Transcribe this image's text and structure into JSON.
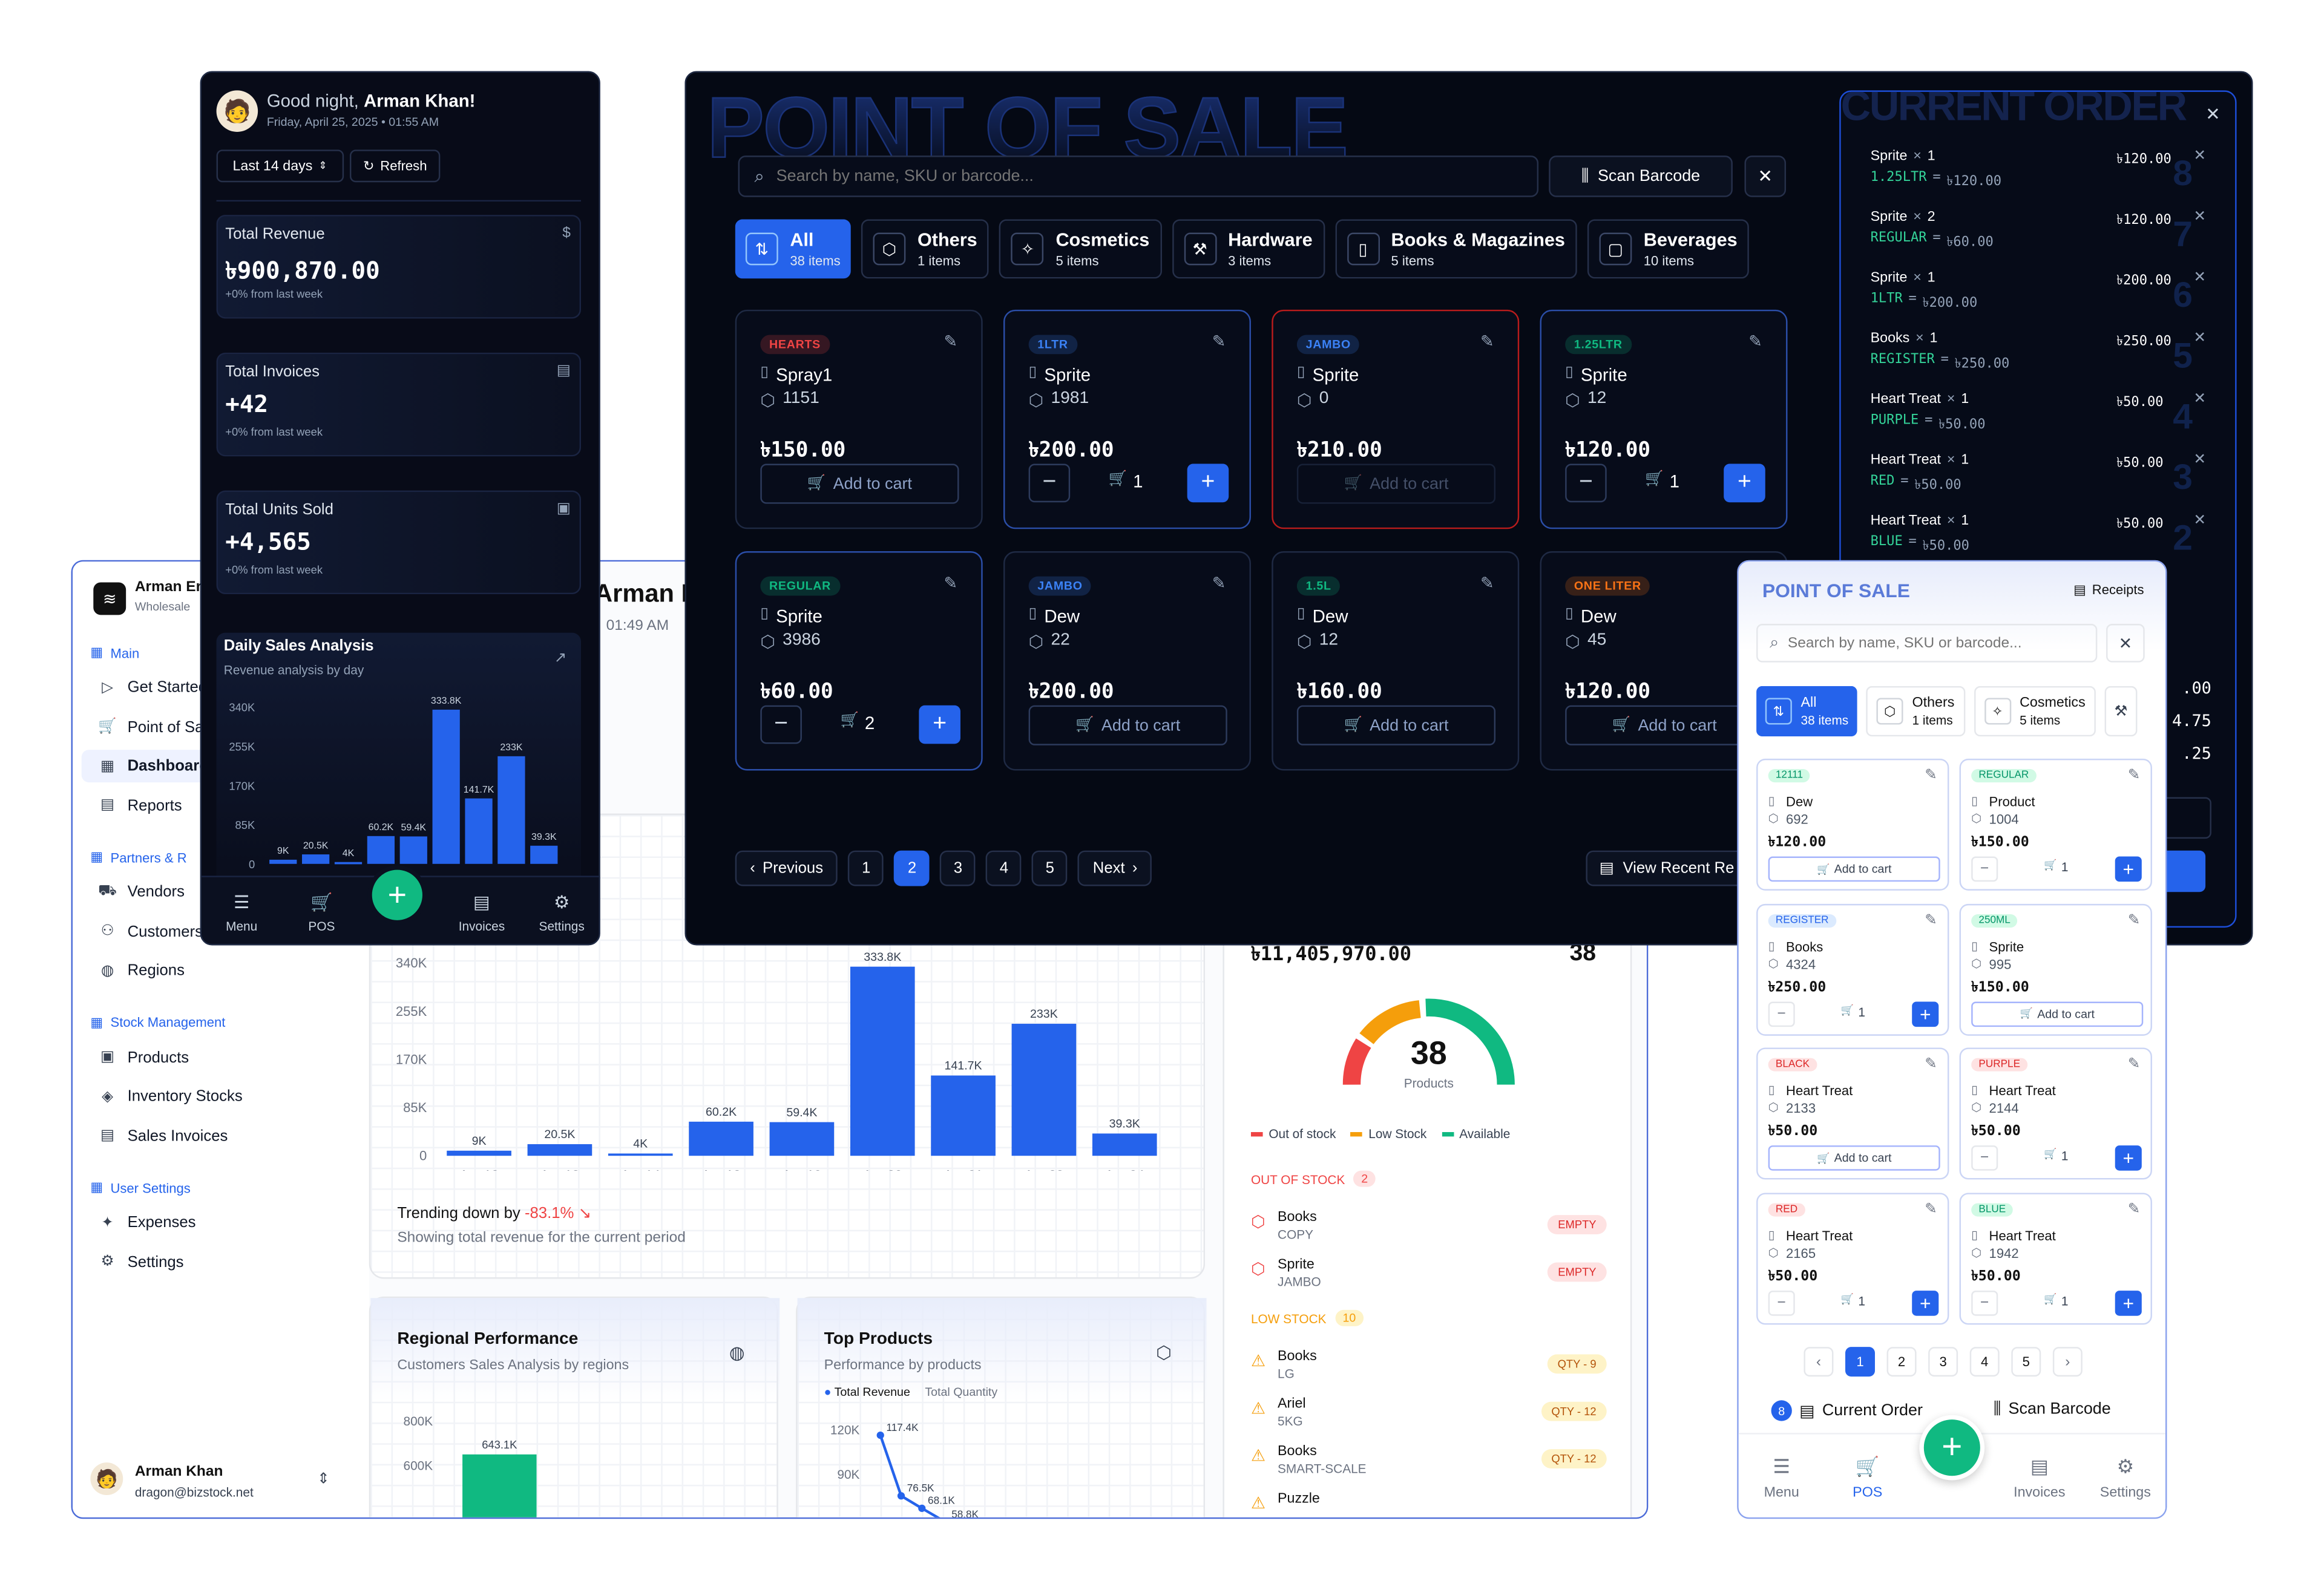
{
  "dashboard": {
    "company_name": "Arman Er",
    "company_sub": "Wholesale",
    "nav": [
      {
        "section": "Main",
        "items": [
          {
            "label": "Get Started",
            "icon": "play-icon"
          },
          {
            "label": "Point of Sale",
            "icon": "cart-icon"
          },
          {
            "label": "Dashboard",
            "icon": "grid-icon",
            "active": true
          },
          {
            "label": "Reports",
            "icon": "file-icon"
          }
        ]
      },
      {
        "section": "Partners & R",
        "items": [
          {
            "label": "Vendors",
            "icon": "truck-icon"
          },
          {
            "label": "Customers",
            "icon": "users-icon"
          },
          {
            "label": "Regions",
            "icon": "globe-icon"
          }
        ]
      },
      {
        "section": "Stock Management",
        "items": [
          {
            "label": "Products",
            "icon": "box-icon"
          },
          {
            "label": "Inventory Stocks",
            "icon": "layers-icon"
          },
          {
            "label": "Sales Invoices",
            "icon": "invoice-icon"
          }
        ]
      },
      {
        "section": "User Settings",
        "items": [
          {
            "label": "Expenses",
            "icon": "money-icon"
          },
          {
            "label": "Settings",
            "icon": "gear-icon"
          }
        ]
      }
    ],
    "user_name": "Arman Khan",
    "user_email": "dragon@bizstock.net",
    "header_name": "Arman K",
    "header_time": "01:49 AM",
    "sales_chart_footer": {
      "trend_text": "Trending down by",
      "trend_value": "-83.1%",
      "sub": "Showing total revenue for the current period"
    },
    "inventory": {
      "total_value": "৳11,405,970.00",
      "total_products": "38",
      "gauge_value": "38",
      "gauge_label": "Products",
      "legend": [
        {
          "label": "Out of stock",
          "color": "#ef4444"
        },
        {
          "label": "Low Stock",
          "color": "#f59e0b"
        },
        {
          "label": "Available",
          "color": "#10b981"
        }
      ],
      "out_title": "OUT OF STOCK",
      "out_count": "2",
      "out_items": [
        {
          "name": "Books",
          "sub": "COPY",
          "tag": "EMPTY"
        },
        {
          "name": "Sprite",
          "sub": "JAMBO",
          "tag": "EMPTY"
        }
      ],
      "low_title": "LOW STOCK",
      "low_count": "10",
      "low_items": [
        {
          "name": "Books",
          "sub": "LG",
          "tag": "QTY - 9"
        },
        {
          "name": "Ariel",
          "sub": "5KG",
          "tag": "QTY - 12"
        },
        {
          "name": "Books",
          "sub": "SMART-SCALE",
          "tag": "QTY - 12"
        },
        {
          "name": "Puzzle",
          "sub": "",
          "tag": ""
        }
      ]
    },
    "regional": {
      "title": "Regional Performance",
      "sub": "Customers Sales Analysis by regions"
    },
    "top_products": {
      "title": "Top Products",
      "sub": "Performance by products",
      "legend_a": "Total Revenue",
      "legend_b": "Total Quantity"
    }
  },
  "phone": {
    "greeting": "Good night,",
    "user": "Arman Khan!",
    "date": "Friday, April 25, 2025 • 01:55 AM",
    "range": "Last 14 days",
    "refresh": "Refresh",
    "kpis": [
      {
        "title": "Total Revenue",
        "value": "৳900,870.00",
        "sub": "+0% from last week",
        "icon": "dollar-icon"
      },
      {
        "title": "Total Invoices",
        "value": "+42",
        "sub": "+0% from last week",
        "icon": "invoice-icon"
      },
      {
        "title": "Total Units Sold",
        "value": "+4,565",
        "sub": "+0% from last week",
        "icon": "box-icon"
      }
    ],
    "chart_title": "Daily Sales Analysis",
    "chart_sub": "Revenue analysis by day",
    "nav": [
      "Menu",
      "POS",
      "",
      "Invoices",
      "Settings"
    ]
  },
  "pos": {
    "title_bg": "POINT OF SALE",
    "search_placeholder": "Search by name, SKU or barcode...",
    "scan": "Scan Barcode",
    "categories": [
      {
        "name": "All",
        "count": "38 items",
        "active": true
      },
      {
        "name": "Others",
        "count": "1 items"
      },
      {
        "name": "Cosmetics",
        "count": "5 items"
      },
      {
        "name": "Hardware",
        "count": "3 items"
      },
      {
        "name": "Books & Magazines",
        "count": "5 items"
      },
      {
        "name": "Beverages",
        "count": "10 items"
      }
    ],
    "products": [
      {
        "badge": "HEARTS",
        "badge_color": "#ef4444",
        "name": "Spray1",
        "stock": "1151",
        "price": "৳150.00",
        "mode": "add",
        "border": "#1f2a44"
      },
      {
        "badge": "1LTR",
        "badge_color": "#3b82f6",
        "name": "Sprite",
        "stock": "1981",
        "price": "৳200.00",
        "mode": "qty",
        "qty": "1",
        "border": "#2b4ea8"
      },
      {
        "badge": "JAMBO",
        "badge_color": "#3b82f6",
        "name": "Sprite",
        "stock": "0",
        "price": "৳210.00",
        "mode": "add_disabled",
        "border": "#b91c1c"
      },
      {
        "badge": "1.25LTR",
        "badge_color": "#10b981",
        "name": "Sprite",
        "stock": "12",
        "price": "৳120.00",
        "mode": "qty",
        "qty": "1",
        "border": "#2b4ea8"
      },
      {
        "badge": "REGULAR",
        "badge_color": "#10b981",
        "name": "Sprite",
        "stock": "3986",
        "price": "৳60.00",
        "mode": "qty",
        "qty": "2",
        "border": "#2b4ea8"
      },
      {
        "badge": "JAMBO",
        "badge_color": "#3b82f6",
        "name": "Dew",
        "stock": "22",
        "price": "৳200.00",
        "mode": "add",
        "border": "#1f2a44"
      },
      {
        "badge": "1.5L",
        "badge_color": "#10b981",
        "name": "Dew",
        "stock": "12",
        "price": "৳160.00",
        "mode": "add",
        "border": "#1f2a44"
      },
      {
        "badge": "ONE LITER",
        "badge_color": "#f97316",
        "name": "Dew",
        "stock": "45",
        "price": "৳120.00",
        "mode": "add",
        "border": "#1f2a44"
      }
    ],
    "add_to_cart": "Add to cart",
    "pagination": {
      "prev": "Previous",
      "pages": [
        "1",
        "2",
        "3",
        "4",
        "5"
      ],
      "current": "2",
      "next": "Next"
    },
    "recent": "View Recent Re",
    "order_title_bg": "CURRENT ORDER",
    "order_items": [
      {
        "name": "Sprite",
        "qty": "1",
        "variant": "1.25LTR",
        "unit": "৳120.00",
        "total": "৳120.00",
        "n": "8"
      },
      {
        "name": "Sprite",
        "qty": "2",
        "variant": "REGULAR",
        "unit": "৳60.00",
        "total": "৳120.00",
        "n": "7"
      },
      {
        "name": "Sprite",
        "qty": "1",
        "variant": "1LTR",
        "unit": "৳200.00",
        "total": "৳200.00",
        "n": "6"
      },
      {
        "name": "Books",
        "qty": "1",
        "variant": "REGISTER",
        "unit": "৳250.00",
        "total": "৳250.00",
        "n": "5"
      },
      {
        "name": "Heart Treat",
        "qty": "1",
        "variant": "PURPLE",
        "unit": "৳50.00",
        "total": "৳50.00",
        "n": "4"
      },
      {
        "name": "Heart Treat",
        "qty": "1",
        "variant": "RED",
        "unit": "৳50.00",
        "total": "৳50.00",
        "n": "3"
      },
      {
        "name": "Heart Treat",
        "qty": "1",
        "variant": "BLUE",
        "unit": "৳50.00",
        "total": "৳50.00",
        "n": "2"
      }
    ],
    "order_totals": [
      ".00",
      "4.75",
      ".25"
    ],
    "order_checkout": "25",
    "order_misc": "o"
  },
  "lpos": {
    "title": "POINT OF SALE",
    "receipts": "Receipts",
    "search_placeholder": "Search by name, SKU or barcode...",
    "categories": [
      {
        "name": "All",
        "count": "38 items",
        "active": true
      },
      {
        "name": "Others",
        "count": "1 items"
      },
      {
        "name": "Cosmetics",
        "count": "5 items"
      }
    ],
    "products": [
      {
        "badge": "12111",
        "badge_bg": "#d1fae5",
        "badge_fg": "#059669",
        "name": "Dew",
        "stock": "692",
        "price": "৳120.00",
        "mode": "add"
      },
      {
        "badge": "REGULAR",
        "badge_bg": "#d1fae5",
        "badge_fg": "#059669",
        "name": "Product",
        "stock": "1004",
        "price": "৳150.00",
        "mode": "qty",
        "qty": "1"
      },
      {
        "badge": "REGISTER",
        "badge_bg": "#dbeafe",
        "badge_fg": "#2563eb",
        "name": "Books",
        "stock": "4324",
        "price": "৳250.00",
        "mode": "qty",
        "qty": "1"
      },
      {
        "badge": "250ML",
        "badge_bg": "#d1fae5",
        "badge_fg": "#059669",
        "name": "Sprite",
        "stock": "995",
        "price": "৳150.00",
        "mode": "add"
      },
      {
        "badge": "BLACK",
        "badge_bg": "#fee2e2",
        "badge_fg": "#dc2626",
        "name": "Heart Treat",
        "stock": "2133",
        "price": "৳50.00",
        "mode": "add"
      },
      {
        "badge": "PURPLE",
        "badge_bg": "#fee2e2",
        "badge_fg": "#dc2626",
        "name": "Heart Treat",
        "stock": "2144",
        "price": "৳50.00",
        "mode": "qty",
        "qty": "1"
      },
      {
        "badge": "RED",
        "badge_bg": "#fee2e2",
        "badge_fg": "#dc2626",
        "name": "Heart Treat",
        "stock": "2165",
        "price": "৳50.00",
        "mode": "qty",
        "qty": "1"
      },
      {
        "badge": "BLUE",
        "badge_bg": "#d1fae5",
        "badge_fg": "#059669",
        "name": "Heart Treat",
        "stock": "1942",
        "price": "৳50.00",
        "mode": "qty",
        "qty": "1"
      }
    ],
    "add_to_cart": "Add to cart",
    "pages": [
      "1",
      "2",
      "3",
      "4",
      "5"
    ],
    "current_page": "1",
    "order_count": "8",
    "current_order": "Current Order",
    "scan": "Scan Barcode",
    "nav": [
      "Menu",
      "POS",
      "",
      "Invoices",
      "Settings"
    ]
  },
  "chart_data": [
    {
      "type": "bar",
      "title": "Daily Sales Analysis",
      "categories": [
        "Apr 12",
        "Apr 13",
        "Apr 14",
        "Apr 18",
        "Apr 19",
        "Apr 20",
        "Apr 21",
        "Apr 22",
        "Apr 24"
      ],
      "values": [
        9000,
        20500,
        4000,
        60200,
        59400,
        333800,
        141700,
        233000,
        39300
      ],
      "value_labels": [
        "9K",
        "20.5K",
        "4K",
        "60.2K",
        "59.4K",
        "333.8K",
        "141.7K",
        "233K",
        "39.3K"
      ],
      "yticks": [
        "0",
        "85K",
        "170K",
        "255K",
        "340K"
      ],
      "ylim": [
        0,
        340000
      ],
      "color": "#2563eb"
    },
    {
      "type": "bar",
      "title": "Regional Performance",
      "categories": [
        ""
      ],
      "values": [
        643100
      ],
      "value_labels": [
        "643.1K"
      ],
      "yticks": [
        "600K",
        "800K"
      ],
      "color": "#10b981"
    },
    {
      "type": "line",
      "title": "Top Products",
      "series": [
        {
          "name": "Total Revenue",
          "values": [
            117400,
            76500,
            68100,
            58800
          ]
        }
      ],
      "value_labels": [
        "117.4K",
        "76.5K",
        "68.1K",
        "58.8K"
      ],
      "yticks": [
        "90K",
        "120K"
      ]
    },
    {
      "type": "pie",
      "title": "Inventory",
      "categories": [
        "Out of stock",
        "Low Stock",
        "Available"
      ],
      "values": [
        2,
        10,
        26
      ]
    }
  ]
}
